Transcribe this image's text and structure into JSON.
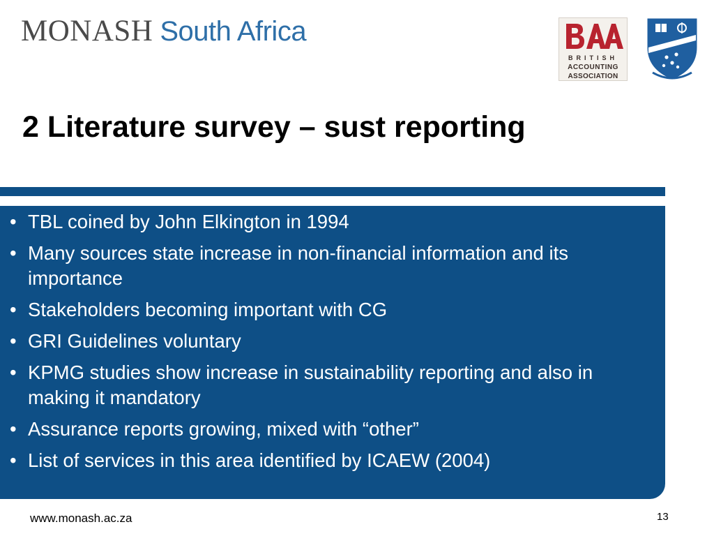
{
  "header": {
    "brand_monash": "MONASH",
    "brand_region": "South Africa",
    "baa_logo": {
      "line1": "BRITISH",
      "line2": "ACCOUNTING",
      "line3": "ASSOCIATION"
    },
    "crest_icon": "university-crest-icon"
  },
  "slide": {
    "title": "2 Literature survey – sust reporting",
    "bullets": [
      "TBL coined by John Elkington in 1994",
      "Many sources state increase in non-financial information and its importance",
      "Stakeholders becoming important with CG",
      "GRI Guidelines voluntary",
      "KPMG studies show increase in sustainability reporting and also in making it mandatory",
      "Assurance reports growing, mixed with “other”",
      "List of services in this area identified by ICAEW (2004)"
    ]
  },
  "footer": {
    "url": "www.monash.ac.za",
    "page_number": "13"
  },
  "colors": {
    "panel_blue": "#0e4f86",
    "brand_blue": "#2e6fa8",
    "brand_gray": "#4a4a4a",
    "baa_red": "#b8232f"
  }
}
